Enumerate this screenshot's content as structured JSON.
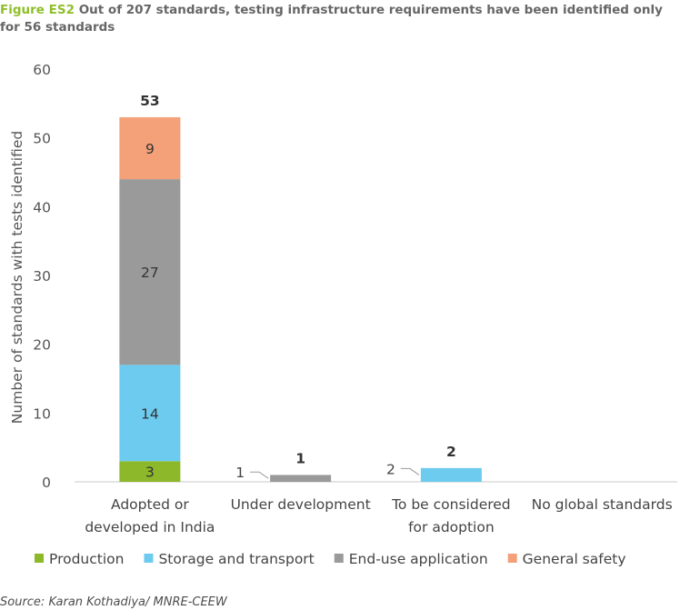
{
  "caption": {
    "figure_label": "Figure ES2",
    "text": "Out of 207 standards, testing infrastructure requirements have been identified only for 56 standards"
  },
  "source": "Source: Karan Kothadiya/ MNRE-CEEW",
  "colors": {
    "Production": "#8cb82a",
    "Storage and transport": "#6ccbef",
    "End-use application": "#9a9a9a",
    "General safety": "#f4a078"
  },
  "chart_data": {
    "type": "bar",
    "stacked": true,
    "title": "",
    "xlabel": "",
    "ylabel": "Number of standards with tests identified",
    "ylim": [
      0,
      60
    ],
    "yticks": [
      0,
      10,
      20,
      30,
      40,
      50,
      60
    ],
    "grid": false,
    "legend_position": "bottom",
    "categories": [
      [
        "Adopted or",
        "developed in India"
      ],
      [
        "Under development"
      ],
      [
        "To be considered",
        "for adoption"
      ],
      [
        "No global standards"
      ]
    ],
    "series": [
      {
        "name": "Production",
        "values": [
          3,
          0,
          0,
          0
        ]
      },
      {
        "name": "Storage and transport",
        "values": [
          14,
          0,
          2,
          0
        ]
      },
      {
        "name": "End-use application",
        "values": [
          27,
          1,
          0,
          0
        ]
      },
      {
        "name": "General safety",
        "values": [
          9,
          0,
          0,
          0
        ]
      }
    ],
    "totals": [
      53,
      1,
      2,
      null
    ],
    "segment_labels": [
      [
        "3",
        "14",
        "27",
        "9"
      ],
      [
        null,
        null,
        null,
        null
      ],
      [
        null,
        null,
        null,
        null
      ],
      [
        null,
        null,
        null,
        null
      ]
    ],
    "callout_labels": [
      {
        "category": 1,
        "series": 2,
        "text": "1"
      },
      {
        "category": 2,
        "series": 1,
        "text": "2"
      }
    ]
  }
}
